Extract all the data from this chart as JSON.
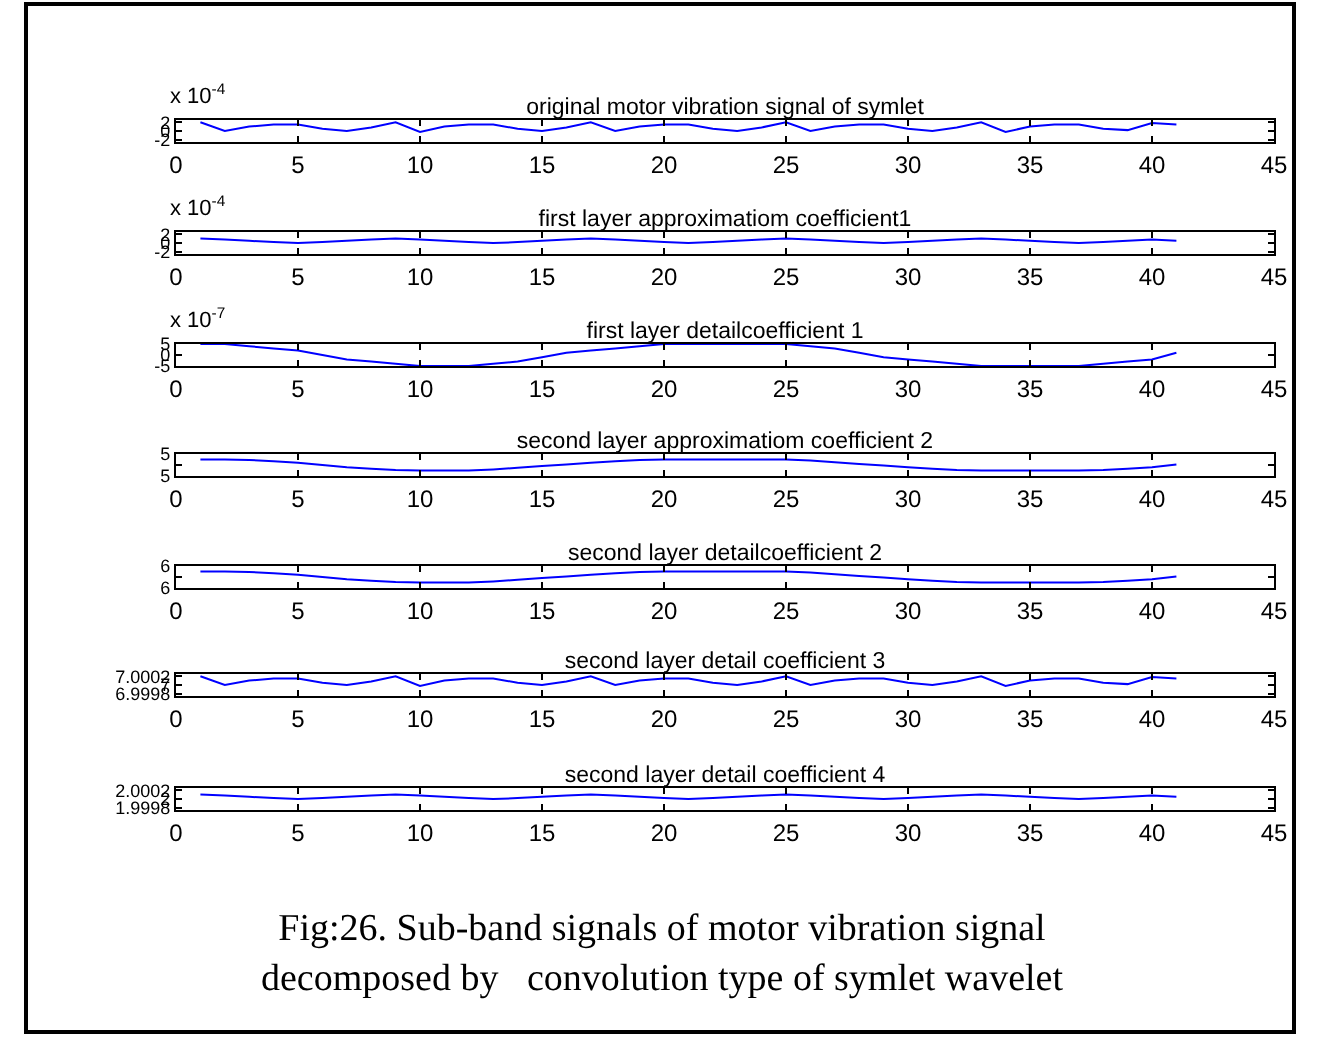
{
  "chart_data": [
    {
      "type": "line",
      "title": "original motor vibration signal of symlet",
      "ylabel": "x 10$^{-4}$",
      "color": "#0000ff",
      "x": [
        1,
        2,
        3,
        4,
        5,
        6,
        7,
        8,
        9,
        10,
        11,
        12,
        13,
        14,
        15,
        16,
        17,
        18,
        19,
        20,
        21,
        22,
        23,
        24,
        25,
        26,
        27,
        28,
        29,
        30,
        31,
        32,
        33,
        34,
        35,
        36,
        37,
        38,
        39,
        40,
        41
      ],
      "values": [
        2,
        0,
        1,
        1.5,
        1.5,
        0.5,
        0,
        0.8,
        2,
        -0.2,
        1,
        1.5,
        1.5,
        0.5,
        0,
        0.8,
        2,
        0,
        1,
        1.5,
        1.5,
        0.5,
        0,
        0.8,
        2,
        0,
        1,
        1.5,
        1.5,
        0.5,
        0,
        0.8,
        2,
        -0.2,
        1,
        1.5,
        1.5,
        0.5,
        0.2,
        1.8,
        1.5
      ],
      "xlim": [
        0,
        45
      ],
      "xticks": [
        0,
        5,
        10,
        15,
        20,
        25,
        30,
        35,
        40,
        45
      ],
      "ylim": [
        -2.5,
        2.5
      ],
      "yticks": [
        -2,
        0,
        2
      ]
    },
    {
      "type": "line",
      "title": "first layer approximatiom coefficient1",
      "ylabel": "x 10$^{-4}$",
      "color": "#0000ff",
      "x": [
        1,
        2,
        3,
        4,
        5,
        6,
        7,
        8,
        9,
        10,
        11,
        12,
        13,
        14,
        15,
        16,
        17,
        18,
        19,
        20,
        21,
        22,
        23,
        24,
        25,
        26,
        27,
        28,
        29,
        30,
        31,
        32,
        33,
        34,
        35,
        36,
        37,
        38,
        39,
        40,
        41
      ],
      "values": [
        1,
        0.8,
        0.5,
        0.2,
        0,
        0.2,
        0.5,
        0.8,
        1,
        0.8,
        0.5,
        0.2,
        0,
        0.2,
        0.5,
        0.8,
        1,
        0.8,
        0.5,
        0.2,
        0,
        0.2,
        0.5,
        0.8,
        1,
        0.8,
        0.5,
        0.2,
        0,
        0.2,
        0.5,
        0.8,
        1,
        0.8,
        0.5,
        0.2,
        0,
        0.2,
        0.5,
        0.8,
        0.5
      ],
      "xlim": [
        0,
        45
      ],
      "xticks": [
        0,
        5,
        10,
        15,
        20,
        25,
        30,
        35,
        40,
        45
      ],
      "ylim": [
        -2.5,
        2.5
      ],
      "yticks": [
        -2,
        0,
        2
      ]
    },
    {
      "type": "line",
      "title": "first layer detailcoefficient 1",
      "ylabel": "x 10$^{-7}$",
      "color": "#0000ff",
      "x": [
        1,
        2,
        3,
        4,
        5,
        6,
        7,
        8,
        9,
        10,
        11,
        12,
        13,
        14,
        15,
        16,
        17,
        18,
        19,
        20,
        21,
        22,
        23,
        24,
        25,
        26,
        27,
        28,
        29,
        30,
        31,
        32,
        33,
        34,
        35,
        36,
        37,
        38,
        39,
        40,
        41
      ],
      "values": [
        5,
        5,
        4,
        3,
        2,
        0,
        -2,
        -3,
        -4,
        -5,
        -5,
        -5,
        -4,
        -3,
        -1,
        1,
        2,
        3,
        4,
        5,
        5,
        5,
        5,
        5,
        5,
        4,
        3,
        1,
        -1,
        -2,
        -3,
        -4,
        -5,
        -5,
        -5,
        -5,
        -5,
        -4,
        -3,
        -2,
        1
      ],
      "xlim": [
        0,
        45
      ],
      "xticks": [
        0,
        5,
        10,
        15,
        20,
        25,
        30,
        35,
        40,
        45
      ],
      "ylim": [
        -5,
        5
      ],
      "yticks": [
        -5,
        0,
        5
      ]
    },
    {
      "type": "line",
      "title": "second layer approximatiom coefficient 2",
      "color": "#0000ff",
      "x": [
        1,
        2,
        3,
        4,
        5,
        6,
        7,
        8,
        9,
        10,
        11,
        12,
        13,
        14,
        15,
        16,
        17,
        18,
        19,
        20,
        21,
        22,
        23,
        24,
        25,
        26,
        27,
        28,
        29,
        30,
        31,
        32,
        33,
        34,
        35,
        36,
        37,
        38,
        39,
        40,
        41
      ],
      "values": [
        5.0001,
        5.0001,
        5.00009,
        5.00007,
        5.00004,
        5,
        4.99996,
        4.99993,
        4.99991,
        4.9999,
        4.9999,
        4.9999,
        4.99992,
        4.99995,
        4.99998,
        5.00001,
        5.00004,
        5.00007,
        5.00009,
        5.0001,
        5.0001,
        5.0001,
        5.0001,
        5.0001,
        5.0001,
        5.00008,
        5.00005,
        5.00002,
        4.99999,
        4.99996,
        4.99993,
        4.99991,
        4.9999,
        4.9999,
        4.9999,
        4.9999,
        4.9999,
        4.99991,
        4.99993,
        4.99996,
        5.00001
      ],
      "xlim": [
        0,
        45
      ],
      "xticks": [
        0,
        5,
        10,
        15,
        20,
        25,
        30,
        35,
        40,
        45
      ],
      "ylim": [
        4.9998,
        5.0002
      ],
      "yticks": [
        {
          "value": 4.9998,
          "label": "5"
        },
        {
          "value": 5,
          "label": null
        },
        {
          "value": 5.0002,
          "label": "5"
        }
      ]
    },
    {
      "type": "line",
      "title": "second layer detailcoefficient 2",
      "color": "#0000ff",
      "x": [
        1,
        2,
        3,
        4,
        5,
        6,
        7,
        8,
        9,
        10,
        11,
        12,
        13,
        14,
        15,
        16,
        17,
        18,
        19,
        20,
        21,
        22,
        23,
        24,
        25,
        26,
        27,
        28,
        29,
        30,
        31,
        32,
        33,
        34,
        35,
        36,
        37,
        38,
        39,
        40,
        41
      ],
      "values": [
        6.0001,
        6.0001,
        6.00009,
        6.00007,
        6.00004,
        6,
        5.99996,
        5.99993,
        5.99991,
        5.9999,
        5.9999,
        5.9999,
        5.99992,
        5.99995,
        5.99998,
        6.00001,
        6.00004,
        6.00007,
        6.00009,
        6.0001,
        6.0001,
        6.0001,
        6.0001,
        6.0001,
        6.0001,
        6.00008,
        6.00005,
        6.00002,
        5.99999,
        5.99996,
        5.99993,
        5.99991,
        5.9999,
        5.9999,
        5.9999,
        5.9999,
        5.9999,
        5.99991,
        5.99993,
        5.99996,
        6.00001
      ],
      "xlim": [
        0,
        45
      ],
      "xticks": [
        0,
        5,
        10,
        15,
        20,
        25,
        30,
        35,
        40,
        45
      ],
      "ylim": [
        5.9998,
        6.0002
      ],
      "yticks": [
        {
          "value": 5.9998,
          "label": "6"
        },
        {
          "value": 6,
          "label": null
        },
        {
          "value": 6.0002,
          "label": "6"
        }
      ]
    },
    {
      "type": "line",
      "title": "second layer detail coefficient 3",
      "color": "#0000ff",
      "x": [
        1,
        2,
        3,
        4,
        5,
        6,
        7,
        8,
        9,
        10,
        11,
        12,
        13,
        14,
        15,
        16,
        17,
        18,
        19,
        20,
        21,
        22,
        23,
        24,
        25,
        26,
        27,
        28,
        29,
        30,
        31,
        32,
        33,
        34,
        35,
        36,
        37,
        38,
        39,
        40,
        41
      ],
      "values": [
        7.0002,
        7,
        7.0001,
        7.00015,
        7.00015,
        7.00005,
        7,
        7.00008,
        7.0002,
        6.99998,
        7.0001,
        7.00015,
        7.00015,
        7.00005,
        7,
        7.00008,
        7.0002,
        7,
        7.0001,
        7.00015,
        7.00015,
        7.00005,
        7,
        7.00008,
        7.0002,
        7,
        7.0001,
        7.00015,
        7.00015,
        7.00005,
        7,
        7.00008,
        7.0002,
        6.99998,
        7.0001,
        7.00015,
        7.00015,
        7.00005,
        7.00002,
        7.00018,
        7.00015
      ],
      "xlim": [
        0,
        45
      ],
      "xticks": [
        0,
        5,
        10,
        15,
        20,
        25,
        30,
        35,
        40,
        45
      ],
      "ylim": [
        6.99975,
        7.00025
      ],
      "yticks": [
        6.9998,
        {
          "value": 7,
          "label": "7"
        },
        7.0002
      ]
    },
    {
      "type": "line",
      "title": "second layer detail coefficient 4",
      "color": "#0000ff",
      "x": [
        1,
        2,
        3,
        4,
        5,
        6,
        7,
        8,
        9,
        10,
        11,
        12,
        13,
        14,
        15,
        16,
        17,
        18,
        19,
        20,
        21,
        22,
        23,
        24,
        25,
        26,
        27,
        28,
        29,
        30,
        31,
        32,
        33,
        34,
        35,
        36,
        37,
        38,
        39,
        40,
        41
      ],
      "values": [
        2.0001,
        2.00008,
        2.00005,
        2.00002,
        2,
        2.00002,
        2.00005,
        2.00008,
        2.0001,
        2.00008,
        2.00005,
        2.00002,
        2,
        2.00002,
        2.00005,
        2.00008,
        2.0001,
        2.00008,
        2.00005,
        2.00002,
        2,
        2.00002,
        2.00005,
        2.00008,
        2.0001,
        2.00008,
        2.00005,
        2.00002,
        2,
        2.00002,
        2.00005,
        2.00008,
        2.0001,
        2.00008,
        2.00005,
        2.00002,
        2,
        2.00002,
        2.00005,
        2.00008,
        2.00005
      ],
      "xlim": [
        0,
        45
      ],
      "xticks": [
        0,
        5,
        10,
        15,
        20,
        25,
        30,
        35,
        40,
        45
      ],
      "ylim": [
        1.99975,
        2.00025
      ],
      "yticks": [
        1.9998,
        {
          "value": 2,
          "label": "2"
        },
        2.0002
      ],
      "annotations": [
        "Fig:26. Sub-band signals of motor vibration signal\ndecomposed by   convolution type of symlet wavelet"
      ]
    }
  ]
}
